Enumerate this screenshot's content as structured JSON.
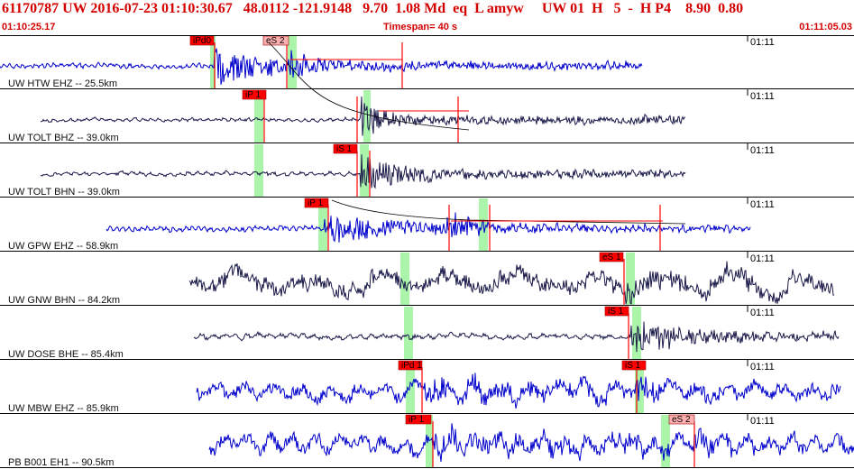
{
  "header": {
    "title": "61170787 UW 2016-07-23 01:10:30.67   48.0112 -121.9148   9.70  1.08 Md  eq  L amyw     UW 01  H   5  -  H P4    8.90  0.80",
    "start_time": "01:10:25.17",
    "timespan": "Timespan=  40 s",
    "end_time": "01:11:05.03"
  },
  "colors": {
    "accent_red": "#d40000",
    "trace_blue": "#0000cc",
    "trace_dark": "#1a1a4a",
    "window_green": "#aaf5aa",
    "pick_red": "#ff0000",
    "pick_pink": "#ffb0b0"
  },
  "tick_label": "01:11",
  "traces": [
    {
      "label": "UW HTW EHZ -- 25.5km",
      "color": "blue",
      "wave": {
        "start": 0,
        "end": 712,
        "arrival": 238,
        "noise": 2.5,
        "amp": 22,
        "secondary": 322,
        "amp2": 18,
        "freq": 0.9,
        "decay": 55,
        "seed": 11
      },
      "green": [
        {
          "x": 233,
          "w": 6
        },
        {
          "x": 319,
          "w": 10
        }
      ],
      "picks": [
        {
          "label": "iPd0",
          "x": 211,
          "w": 26,
          "style": "red"
        },
        {
          "label": "eS 2",
          "x": 292,
          "w": 28,
          "style": "pink"
        }
      ],
      "lines": [
        238,
        318,
        446
      ]
    },
    {
      "label": "UW TOLT BHZ -- 39.0km",
      "color": "dark",
      "wave": {
        "start": 45,
        "end": 760,
        "arrival": 400,
        "noise": 2.0,
        "amp": 26,
        "secondary": 0,
        "amp2": 0,
        "freq": 0.7,
        "decay": 18,
        "seed": 23
      },
      "green": [
        {
          "x": 282,
          "w": 10
        },
        {
          "x": 403,
          "w": 8
        }
      ],
      "picks": [
        {
          "label": "iP  1",
          "x": 269,
          "w": 26,
          "style": "red"
        }
      ],
      "lines": [
        293,
        396,
        508
      ]
    },
    {
      "label": "UW TOLT BHN -- 39.0km",
      "color": "dark",
      "wave": {
        "start": 45,
        "end": 760,
        "arrival": 400,
        "noise": 2.2,
        "amp": 24,
        "secondary": 0,
        "amp2": 0,
        "freq": 0.6,
        "decay": 40,
        "seed": 37
      },
      "green": [
        {
          "x": 282,
          "w": 10
        },
        {
          "x": 399,
          "w": 10
        }
      ],
      "picks": [
        {
          "label": "iS  1",
          "x": 370,
          "w": 26,
          "style": "red"
        }
      ],
      "lines": [
        396,
        410
      ]
    },
    {
      "label": "UW GPW EHZ -- 58.9km",
      "color": "blue",
      "wave": {
        "start": 118,
        "end": 832,
        "arrival": 360,
        "noise": 3.0,
        "amp": 16,
        "secondary": 495,
        "amp2": 20,
        "freq": 0.9,
        "decay": 90,
        "seed": 41
      },
      "green": [
        {
          "x": 353,
          "w": 10
        },
        {
          "x": 531,
          "w": 10
        }
      ],
      "picks": [
        {
          "label": "iP  1",
          "x": 338,
          "w": 26,
          "style": "red"
        }
      ],
      "lines": [
        364,
        498,
        543,
        732
      ]
    },
    {
      "label": "UW GNW BHN -- 84.2km",
      "color": "dark",
      "wave": {
        "start": 210,
        "end": 925,
        "arrival": 694,
        "noise": 14,
        "amp": 14,
        "secondary": 0,
        "amp2": 0,
        "freq": 0.08,
        "decay": 30,
        "seed": 53
      },
      "green": [
        {
          "x": 444,
          "w": 10
        },
        {
          "x": 694,
          "w": 10
        }
      ],
      "picks": [
        {
          "label": "eS  1",
          "x": 665,
          "w": 26,
          "style": "red"
        }
      ],
      "lines": [
        692
      ]
    },
    {
      "label": "UW DOSE BHE -- 85.4km",
      "color": "dark",
      "wave": {
        "start": 215,
        "end": 930,
        "arrival": 699,
        "noise": 3.0,
        "amp": 20,
        "secondary": 0,
        "amp2": 0,
        "freq": 0.5,
        "decay": 60,
        "seed": 67
      },
      "green": [
        {
          "x": 448,
          "w": 10
        },
        {
          "x": 701,
          "w": 10
        }
      ],
      "picks": [
        {
          "label": "iS  1",
          "x": 671,
          "w": 26,
          "style": "red"
        }
      ],
      "lines": [
        697
      ]
    },
    {
      "label": "UW MBW EHZ -- 85.9km",
      "color": "blue",
      "wave": {
        "start": 218,
        "end": 932,
        "arrival": 468,
        "noise": 10,
        "amp": 12,
        "secondary": 706,
        "amp2": 14,
        "freq": 0.2,
        "decay": 200,
        "seed": 79
      },
      "green": [
        {
          "x": 450,
          "w": 10
        },
        {
          "x": 704,
          "w": 10
        }
      ],
      "picks": [
        {
          "label": "iPd 1",
          "x": 442,
          "w": 26,
          "style": "red"
        },
        {
          "label": "iS  1",
          "x": 690,
          "w": 26,
          "style": "red"
        }
      ],
      "lines": [
        468,
        706
      ]
    },
    {
      "label": "PB B001 EH1 -- 90.5km",
      "color": "blue",
      "wave": {
        "start": 232,
        "end": 947,
        "arrival": 480,
        "noise": 11,
        "amp": 12,
        "secondary": 770,
        "amp2": 12,
        "freq": 0.25,
        "decay": 200,
        "seed": 97
      },
      "green": [
        {
          "x": 472,
          "w": 8
        },
        {
          "x": 733,
          "w": 10
        }
      ],
      "picks": [
        {
          "label": "iP  1",
          "x": 450,
          "w": 28,
          "style": "red"
        },
        {
          "label": "eS 2",
          "x": 742,
          "w": 28,
          "style": "pink"
        }
      ],
      "lines": [
        480,
        770
      ]
    }
  ]
}
